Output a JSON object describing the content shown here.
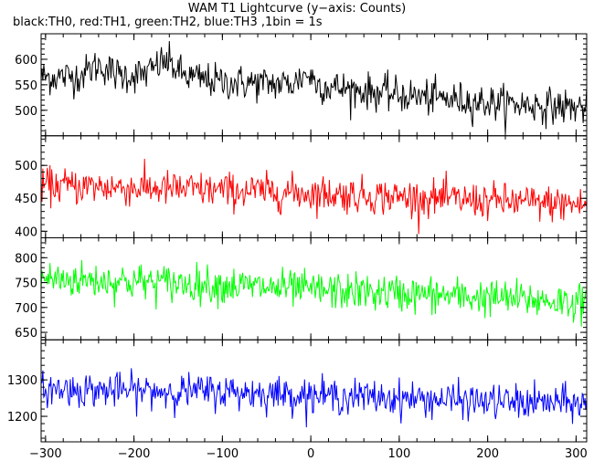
{
  "chart_data": {
    "type": "line",
    "title": "WAM T1 Lightcurve (y−axis: Counts)",
    "subtitle": "black:TH0, red:TH1, green:TH2, blue:TH3 ,1bin = 1s",
    "xlabel": "",
    "ylabel": "",
    "x_range": [
      -300,
      310
    ],
    "x_ticks": [
      -300,
      -200,
      -100,
      0,
      100,
      200,
      300
    ],
    "x_tick_labels": [
      "−300",
      "−200",
      "−100",
      "0",
      "100",
      "200",
      "300"
    ],
    "x_axis_extent": [
      -305,
      312
    ],
    "bin_seconds": 1,
    "panels": [
      {
        "name": "TH0",
        "color": "#000000",
        "ylim": [
          450,
          650
        ],
        "y_ticks": [
          500,
          550,
          600
        ],
        "trend": [
          [
            -305,
            565
          ],
          [
            -160,
            570
          ],
          [
            -100,
            555
          ],
          [
            0,
            550
          ],
          [
            100,
            530
          ],
          [
            200,
            515
          ],
          [
            310,
            505
          ]
        ],
        "noise": 28,
        "bumps": [
          [
            -240,
            20,
            15
          ],
          [
            -165,
            25,
            15
          ],
          [
            -5,
            20,
            10
          ]
        ]
      },
      {
        "name": "TH1",
        "color": "#ff0000",
        "ylim": [
          390,
          545
        ],
        "y_ticks": [
          400,
          450,
          500
        ],
        "trend": [
          [
            -305,
            470
          ],
          [
            -100,
            462
          ],
          [
            0,
            458
          ],
          [
            100,
            452
          ],
          [
            200,
            446
          ],
          [
            310,
            440
          ]
        ],
        "noise": 22,
        "bumps": []
      },
      {
        "name": "TH2",
        "color": "#00ff00",
        "ylim": [
          635,
          840
        ],
        "y_ticks": [
          650,
          700,
          750,
          800
        ],
        "trend": [
          [
            -305,
            758
          ],
          [
            -200,
            752
          ],
          [
            -100,
            745
          ],
          [
            0,
            735
          ],
          [
            100,
            728
          ],
          [
            200,
            720
          ],
          [
            310,
            710
          ]
        ],
        "noise": 30,
        "bumps": []
      },
      {
        "name": "TH3",
        "color": "#0000ff",
        "ylim": [
          1130,
          1410
        ],
        "y_ticks": [
          1200,
          1300
        ],
        "trend": [
          [
            -305,
            1275
          ],
          [
            -200,
            1270
          ],
          [
            -100,
            1268
          ],
          [
            0,
            1258
          ],
          [
            100,
            1250
          ],
          [
            200,
            1240
          ],
          [
            310,
            1235
          ]
        ],
        "noise": 38,
        "bumps": []
      }
    ],
    "grid": false,
    "legend": "none"
  }
}
